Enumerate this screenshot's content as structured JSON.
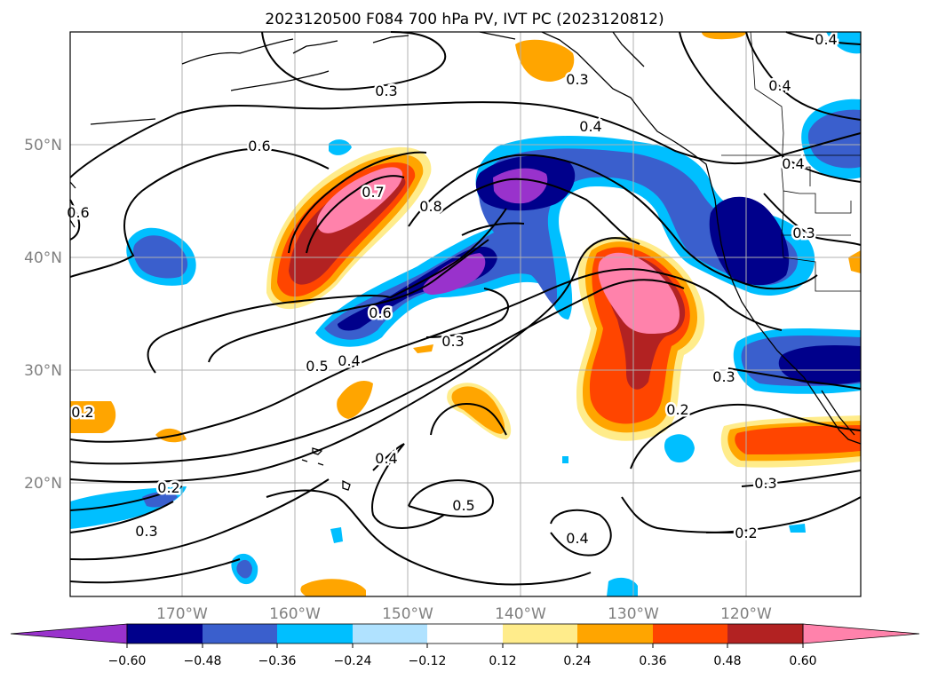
{
  "title": "2023120500 F084 700 hPa PV, IVT PC (2023120812)",
  "map": {
    "lon_labels": [
      "170°W",
      "160°W",
      "150°W",
      "140°W",
      "130°W",
      "120°W"
    ],
    "lat_labels": [
      "50°N",
      "40°N",
      "30°N",
      "20°N"
    ],
    "grid": true
  },
  "contour_labels": [
    "0.3",
    "0.3",
    "0.4",
    "0.4",
    "0.4",
    "0.6",
    "0.6",
    "0.7",
    "0.8",
    "0.6",
    "0.5",
    "0.4",
    "0.3",
    "0.3",
    "0.3",
    "0.2",
    "0.2",
    "0.3",
    "0.4",
    "0.5",
    "0.4",
    "0.2",
    "0.3",
    "0.2",
    "0.4"
  ],
  "colorbar": {
    "ticks": [
      "−0.60",
      "−0.48",
      "−0.36",
      "−0.24",
      "−0.12",
      "0.12",
      "0.24",
      "0.36",
      "0.48",
      "0.60"
    ],
    "colors": [
      "#9932cc",
      "#00008b",
      "#3a5fcd",
      "#00bfff",
      "#b0e2ff",
      "#ffffff",
      "#ffec8b",
      "#ffa500",
      "#ff4500",
      "#b22222",
      "#ff82ab"
    ]
  }
}
